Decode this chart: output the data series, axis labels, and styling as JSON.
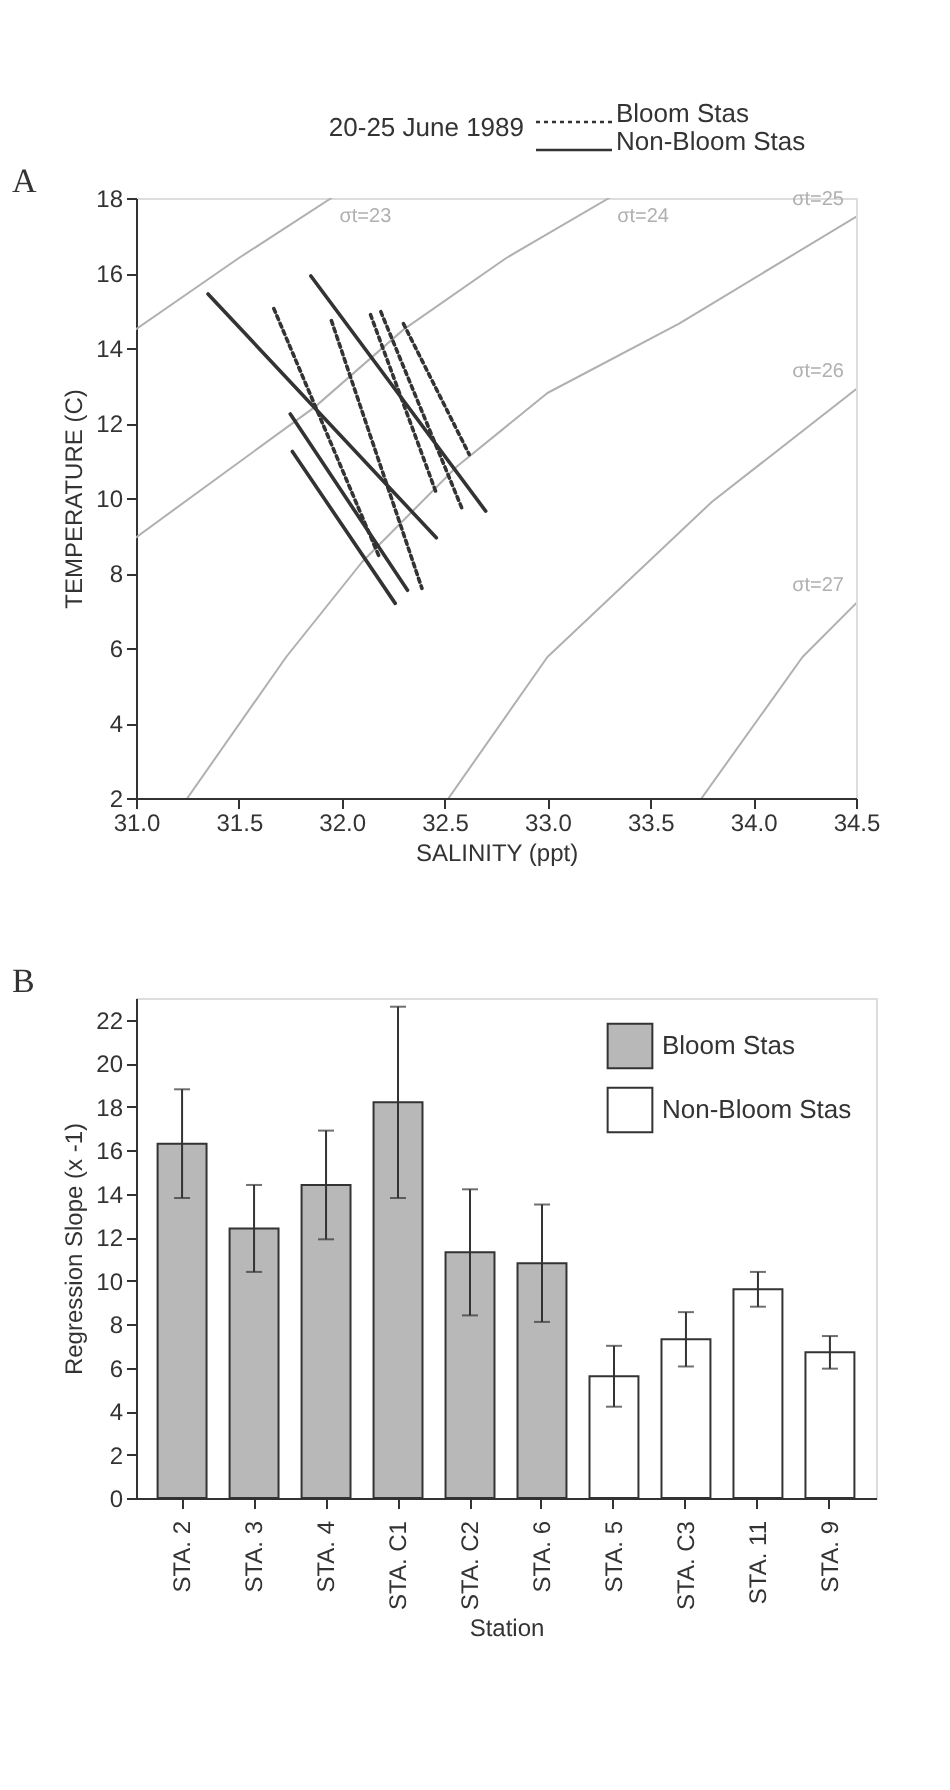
{
  "chart_data": [
    {
      "type": "line",
      "title": "20-25 June 1989",
      "xlabel": "SALINITY (ppt)",
      "ylabel": "TEMPERATURE (C)",
      "xlim": [
        31.0,
        34.5
      ],
      "ylim": [
        2,
        18
      ],
      "xticks": [
        {
          "value": 31,
          "label": "31.0"
        },
        31.5,
        {
          "value": 32,
          "label": "32.0"
        },
        32.5,
        {
          "value": 33,
          "label": "33.0"
        },
        33.5,
        {
          "value": 34,
          "label": "34.0"
        },
        34.5
      ],
      "yticks": [
        2,
        4,
        6,
        8,
        10,
        12,
        14,
        16,
        18
      ],
      "grid": false,
      "legend": "top right",
      "series": [
        {
          "name": "σt=23",
          "color": "#b0b0b0",
          "line_style": "solid",
          "x": [
            31.0,
            31.5,
            31.95
          ],
          "values": [
            14.5,
            16.4,
            18
          ]
        },
        {
          "name": "σt=24",
          "color": "#b0b0b0",
          "line_style": "solid",
          "x": [
            31.0,
            31.87,
            32.3,
            32.8,
            33.3
          ],
          "values": [
            8.95,
            12.43,
            14.49,
            16.4,
            18
          ]
        },
        {
          "name": "σt=25",
          "color": "#b0b0b0",
          "line_style": "solid",
          "x": [
            31.25,
            31.73,
            32.1,
            32.56,
            33.0,
            33.64,
            34.5
          ],
          "values": [
            2,
            5.76,
            8.3,
            10.84,
            12.8,
            14.65,
            17.5
          ]
        },
        {
          "name": "σt=26",
          "color": "#b0b0b0",
          "line_style": "solid",
          "x": [
            32.52,
            33.0,
            33.8,
            34.5
          ],
          "values": [
            2,
            5.76,
            9.9,
            12.9
          ]
        },
        {
          "name": "σt=27",
          "color": "#b0b0b0",
          "line_style": "solid",
          "x": [
            33.75,
            34.24,
            34.5
          ],
          "values": [
            2,
            5.76,
            7.19
          ]
        },
        {
          "name": "Bloom Stas",
          "color": "#333333",
          "line_style": "dotted",
          "x": [
            31.67,
            32.18
          ],
          "values": [
            15.05,
            8.46
          ]
        },
        {
          "color": "#333333",
          "line_style": "dotted",
          "x": [
            31.95,
            32.39
          ],
          "values": [
            14.73,
            7.59
          ]
        },
        {
          "color": "#333333",
          "line_style": "dotted",
          "x": [
            32.14,
            32.46
          ],
          "values": [
            14.89,
            10.13
          ]
        },
        {
          "color": "#333333",
          "line_style": "dotted",
          "x": [
            32.19,
            32.59
          ],
          "values": [
            14.97,
            9.65
          ]
        },
        {
          "color": "#333333",
          "line_style": "dotted",
          "x": [
            32.3,
            32.62
          ],
          "values": [
            14.65,
            11.16
          ]
        },
        {
          "name": "Non-Bloom Stas",
          "color": "#333333",
          "line_style": "solid",
          "x": [
            31.35,
            32.46
          ],
          "values": [
            15.44,
            8.94
          ]
        },
        {
          "color": "#333333",
          "line_style": "solid",
          "x": [
            31.85,
            32.7
          ],
          "values": [
            15.92,
            9.65
          ]
        },
        {
          "color": "#333333",
          "line_style": "solid",
          "x": [
            31.75,
            32.32
          ],
          "values": [
            12.24,
            7.54
          ]
        },
        {
          "color": "#333333",
          "line_style": "solid",
          "x": [
            31.76,
            32.26
          ],
          "values": [
            11.24,
            7.19
          ]
        }
      ],
      "annotations": [
        "A"
      ]
    },
    {
      "type": "bar",
      "xlabel": "Station",
      "ylabel": "Regression Slope (x -1)",
      "ylim": [
        0,
        23
      ],
      "yticks": [
        0,
        2,
        4,
        6,
        8,
        10,
        12,
        14,
        16,
        18,
        20,
        22
      ],
      "grid": false,
      "legend": "top right",
      "categories": [
        "STA. 2",
        "STA. 3",
        "STA. 4",
        "STA. C1",
        "STA. C2",
        "STA. 6",
        "STA. 5",
        "STA. C3",
        "STA. 11",
        "STA. 9"
      ],
      "series": [
        {
          "name": "Bloom Stas",
          "color": "#b8b8b8",
          "values": [
            16.3,
            12.4,
            14.4,
            18.2,
            11.3,
            10.8,
            null,
            null,
            null,
            null
          ],
          "errors": [
            2.5,
            2.0,
            2.5,
            4.4,
            2.9,
            2.7,
            null,
            null,
            null,
            null
          ]
        },
        {
          "name": "Non-Bloom Stas",
          "color": "#ffffff",
          "values": [
            null,
            null,
            null,
            null,
            null,
            null,
            5.6,
            7.3,
            9.6,
            6.7
          ],
          "errors": [
            null,
            null,
            null,
            null,
            null,
            null,
            1.4,
            1.25,
            0.8,
            0.75
          ]
        }
      ],
      "annotations": [
        "B"
      ]
    }
  ]
}
